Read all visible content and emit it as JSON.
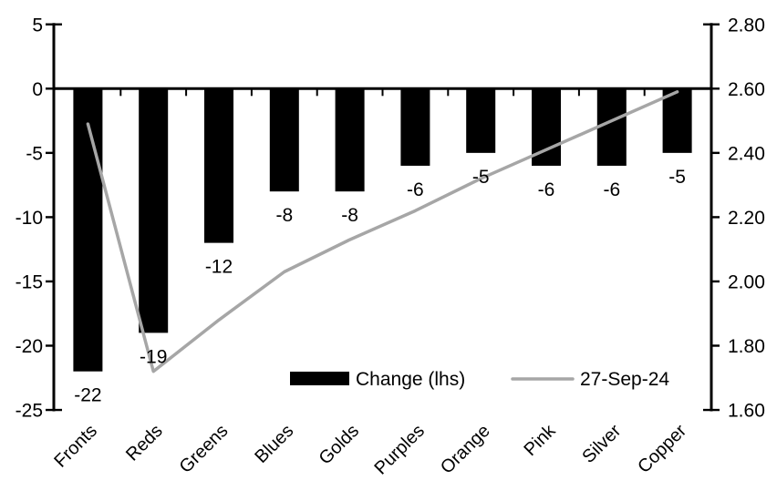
{
  "chart_data": {
    "type": "bar+line combo",
    "title": "",
    "categories": [
      "Fronts",
      "Reds",
      "Greens",
      "Blues",
      "Golds",
      "Purples",
      "Orange",
      "Pink",
      "Silver",
      "Copper"
    ],
    "series": [
      {
        "name": "Change (lhs)",
        "type": "bar",
        "axis": "left",
        "color": "#000000",
        "values": [
          -22,
          -19,
          -12,
          -8,
          -8,
          -6,
          -5,
          -6,
          -6,
          -5
        ],
        "data_labels": [
          "-22",
          "-19",
          "-12",
          "-8",
          "-8",
          "-6",
          "-5",
          "-6",
          "-6",
          "-5"
        ]
      },
      {
        "name": "27-Sep-24",
        "type": "line",
        "axis": "right",
        "color": "#a6a6a6",
        "values": [
          2.49,
          1.72,
          1.88,
          2.03,
          2.13,
          2.22,
          2.32,
          2.41,
          2.5,
          2.59
        ]
      }
    ],
    "left_axis": {
      "min": -25,
      "max": 5,
      "tick_interval": 5,
      "ticks": [
        "5",
        "0",
        "-5",
        "-10",
        "-15",
        "-20",
        "-25"
      ],
      "tick_values": [
        5,
        0,
        -5,
        -10,
        -15,
        -20,
        -25
      ]
    },
    "right_axis": {
      "min": 1.6,
      "max": 2.8,
      "tick_interval": 0.2,
      "ticks": [
        "2.80",
        "2.60",
        "2.40",
        "2.20",
        "2.00",
        "1.80",
        "1.60"
      ],
      "tick_values": [
        2.8,
        2.6,
        2.4,
        2.2,
        2.0,
        1.8,
        1.6
      ]
    },
    "legend": {
      "position": "inside-bottom-right",
      "entries": [
        {
          "label": "Change (lhs)",
          "swatch": "bar",
          "color": "#000000"
        },
        {
          "label": "27-Sep-24",
          "swatch": "line",
          "color": "#a6a6a6"
        }
      ]
    },
    "grid": false,
    "x_labels_rotation_deg": -45,
    "colors": {
      "bar": "#000000",
      "line": "#a6a6a6",
      "axis": "#000000",
      "text": "#000000",
      "background": "#ffffff"
    }
  }
}
